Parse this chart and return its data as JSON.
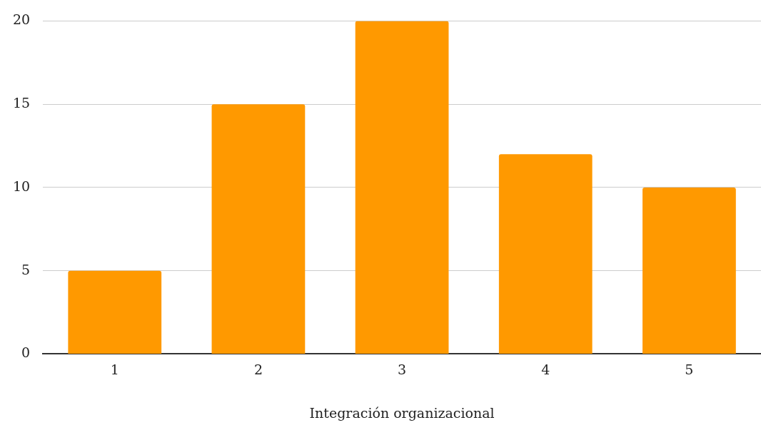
{
  "chart_data": {
    "type": "bar",
    "xlabel": "Integración organizacional",
    "categories": [
      "1",
      "2",
      "3",
      "4",
      "5"
    ],
    "values": [
      5,
      15,
      20,
      12,
      10
    ],
    "color": "#ff9900",
    "ylim": [
      0,
      20
    ],
    "yticks": [
      0,
      5,
      10,
      15,
      20
    ],
    "grid": "y"
  }
}
